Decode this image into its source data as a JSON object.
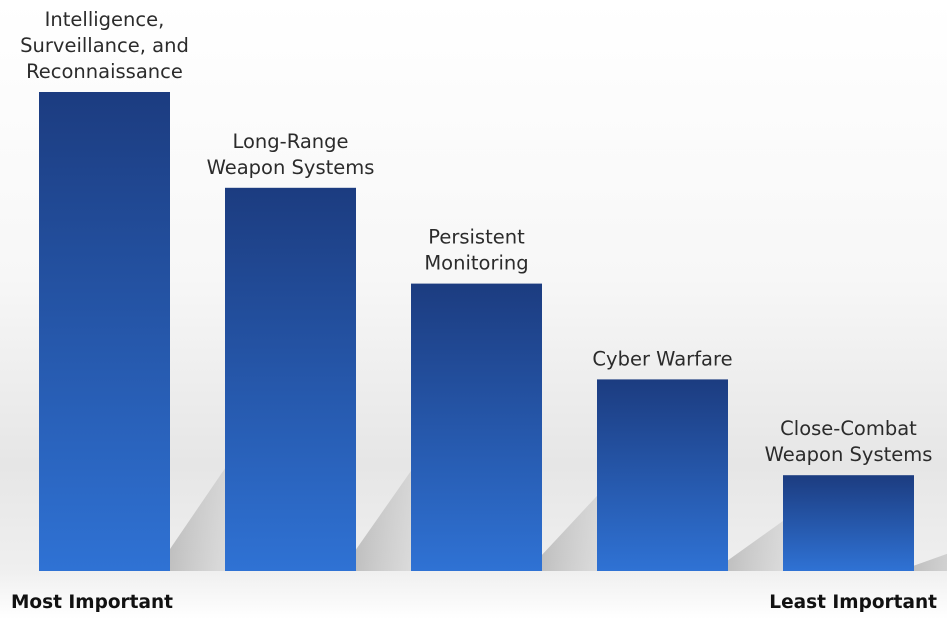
{
  "chart_data": {
    "type": "bar",
    "title": "",
    "xlabel": "",
    "ylabel": "",
    "categories": [
      [
        "Intelligence,",
        "Surveillance, and",
        "Reconnaissance"
      ],
      [
        "Long-Range",
        "Weapon Systems"
      ],
      [
        "Persistent",
        "Monitoring"
      ],
      [
        "Cyber Warfare"
      ],
      [
        "Close-Combat",
        "Weapon Systems"
      ]
    ],
    "values": [
      5,
      4,
      3,
      2,
      1
    ],
    "ylim": [
      0,
      5
    ],
    "grid": false,
    "colors": {
      "bar_top": "#1c3c80",
      "bar_bottom": "#2f72d4",
      "floor": "#e4e4e4"
    }
  },
  "captions": {
    "left": "Most Important",
    "right": "Least Important"
  }
}
